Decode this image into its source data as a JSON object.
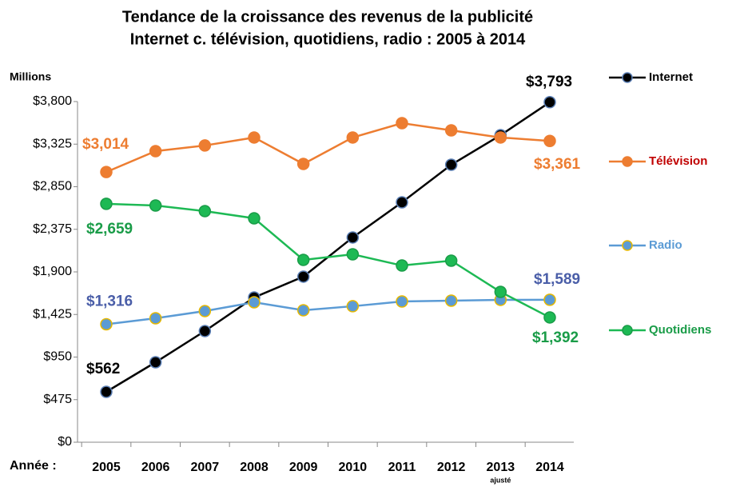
{
  "chart_data": {
    "type": "line",
    "title": [
      "Tendance de la croissance des revenus de la publicité",
      "Internet c. télévision, quotidiens, radio : 2005 à 2014"
    ],
    "y_label": "Millions",
    "x_label": "Année :",
    "categories": [
      "2005",
      "2006",
      "2007",
      "2008",
      "2009",
      "2010",
      "2011",
      "2012",
      "2013",
      "2014"
    ],
    "annotations": [
      {
        "text": "ajusté",
        "category": "2013"
      }
    ],
    "ylim": [
      0,
      3800
    ],
    "yticks": [
      {
        "value": 0,
        "label": "$0"
      },
      {
        "value": 475,
        "label": "$475"
      },
      {
        "value": 950,
        "label": "$950"
      },
      {
        "value": 1425,
        "label": "$1,425"
      },
      {
        "value": 1900,
        "label": "$1,900"
      },
      {
        "value": 2375,
        "label": "$2,375"
      },
      {
        "value": 2850,
        "label": "$2,850"
      },
      {
        "value": 3325,
        "label": "$3,325"
      },
      {
        "value": 3800,
        "label": "$3,800"
      }
    ],
    "series": [
      {
        "name": "Internet",
        "color": "#000000",
        "marker_edge": "#5b7fb5",
        "label_color": "#000000",
        "value_label_color": "#000000",
        "values": [
          562,
          892,
          1240,
          1615,
          1847,
          2284,
          2676,
          3095,
          3425,
          3793
        ],
        "value_labels": [
          "$562",
          null,
          null,
          null,
          null,
          null,
          null,
          null,
          null,
          "$3,793"
        ]
      },
      {
        "name": "Télévision",
        "color": "#ed7d31",
        "marker_edge": "#ed7d31",
        "label_color": "#c00000",
        "value_label_color": "#ed7d31",
        "values": [
          3014,
          3247,
          3310,
          3399,
          3104,
          3399,
          3559,
          3479,
          3399,
          3361
        ],
        "value_labels": [
          "$3,014",
          null,
          null,
          null,
          null,
          null,
          null,
          null,
          null,
          "$3,361"
        ]
      },
      {
        "name": "Radio",
        "color": "#5b9bd5",
        "marker_edge": "#e6b800",
        "label_color": "#5b9bd5",
        "value_label_color": "#4a5ea8",
        "values": [
          1316,
          1383,
          1463,
          1561,
          1472,
          1517,
          1570,
          1579,
          1588,
          1589
        ],
        "value_labels": [
          "$1,316",
          null,
          null,
          null,
          null,
          null,
          null,
          null,
          null,
          "$1,589"
        ]
      },
      {
        "name": "Quotidiens",
        "color": "#1db954",
        "marker_edge": "#1a9c48",
        "label_color": "#1a9c48",
        "value_label_color": "#1a9c48",
        "values": [
          2659,
          2640,
          2578,
          2498,
          2034,
          2096,
          1971,
          2025,
          1677,
          1392
        ],
        "value_labels": [
          "$2,659",
          null,
          null,
          null,
          null,
          null,
          null,
          null,
          null,
          "$1,392"
        ]
      }
    ]
  }
}
